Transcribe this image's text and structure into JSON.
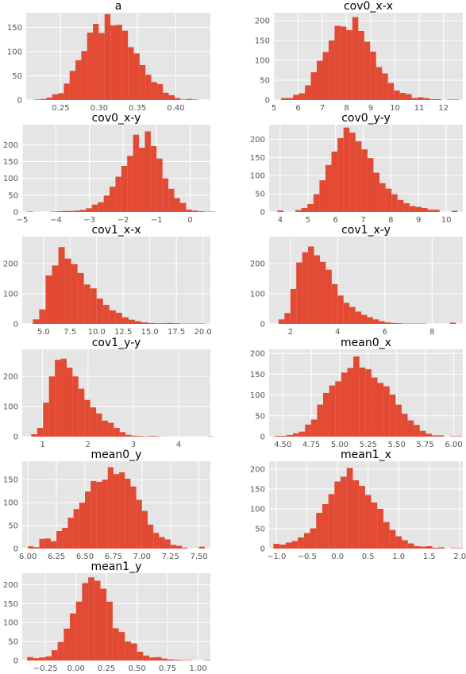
{
  "chart_data": [
    {
      "type": "bar",
      "title": "a",
      "xlabel": "",
      "ylabel": "",
      "xlim": [
        0.205,
        0.445
      ],
      "ylim": [
        0,
        180
      ],
      "xticks": [
        "0.25",
        "0.30",
        "0.35",
        "0.40"
      ],
      "yticks": [
        "0",
        "50",
        "100",
        "150"
      ],
      "bins": {
        "start": 0.216,
        "width": 0.0076,
        "values": [
          1,
          2,
          5,
          12,
          14,
          34,
          60,
          82,
          101,
          139,
          157,
          138,
          177,
          154,
          155,
          143,
          109,
          96,
          72,
          52,
          37,
          33,
          15,
          10,
          4,
          1,
          2,
          1
        ]
      }
    },
    {
      "type": "bar",
      "title": "cov0_x-x",
      "xlabel": "",
      "ylabel": "",
      "xlim": [
        5.0,
        12.8
      ],
      "ylim": [
        0,
        220
      ],
      "xticks": [
        "5",
        "6",
        "7",
        "8",
        "9",
        "10",
        "11",
        "12"
      ],
      "yticks": [
        "0",
        "50",
        "100",
        "150",
        "200"
      ],
      "bins": {
        "start": 5.3,
        "width": 0.245,
        "values": [
          5,
          5,
          13,
          17,
          37,
          70,
          99,
          121,
          150,
          187,
          185,
          176,
          209,
          174,
          147,
          122,
          83,
          67,
          43,
          24,
          18,
          15,
          5,
          7,
          5,
          2,
          2,
          0,
          1,
          1
        ]
      }
    },
    {
      "type": "bar",
      "title": "cov0_x-y",
      "xlabel": "",
      "ylabel": "",
      "xlim": [
        -5.0,
        0.6
      ],
      "ylim": [
        0,
        260
      ],
      "xticks": [
        "−5",
        "−4",
        "−3",
        "−2",
        "−1",
        "0"
      ],
      "yticks": [
        "0",
        "50",
        "100",
        "150",
        "200"
      ],
      "bins": {
        "start": -4.85,
        "width": 0.175,
        "values": [
          1,
          0,
          0,
          0,
          1,
          2,
          3,
          3,
          4,
          6,
          11,
          22,
          29,
          49,
          75,
          105,
          137,
          167,
          230,
          191,
          240,
          196,
          159,
          100,
          69,
          41,
          27,
          7,
          4,
          2,
          1,
          1
        ]
      }
    },
    {
      "type": "bar",
      "title": "cov0_y-y",
      "xlabel": "",
      "ylabel": "",
      "xlim": [
        3.6,
        10.6
      ],
      "ylim": [
        0,
        240
      ],
      "xticks": [
        "4",
        "5",
        "6",
        "7",
        "8",
        "9",
        "10"
      ],
      "yticks": [
        "0",
        "50",
        "100",
        "150",
        "200"
      ],
      "bins": {
        "start": 3.9,
        "width": 0.217,
        "values": [
          4,
          0,
          0,
          5,
          11,
          22,
          49,
          87,
          129,
          166,
          203,
          232,
          218,
          194,
          172,
          148,
          108,
          79,
          64,
          49,
          33,
          24,
          16,
          14,
          11,
          6,
          6,
          0,
          0,
          3
        ]
      }
    },
    {
      "type": "bar",
      "title": "cov1_x-x",
      "xlabel": "",
      "ylabel": "",
      "xlim": [
        3.0,
        20.7
      ],
      "ylim": [
        0,
        290
      ],
      "xticks": [
        "5.0",
        "7.5",
        "10.0",
        "12.5",
        "15.0",
        "17.5",
        "20.0"
      ],
      "yticks": [
        "0",
        "100",
        "200"
      ],
      "bins": {
        "start": 4.0,
        "width": 0.6,
        "values": [
          15,
          48,
          161,
          194,
          255,
          217,
          199,
          169,
          131,
          118,
          84,
          63,
          45,
          37,
          22,
          14,
          9,
          5,
          3,
          2,
          2,
          3,
          2,
          1,
          1,
          1,
          1,
          0
        ]
      }
    },
    {
      "type": "bar",
      "title": "cov1_x-y",
      "xlabel": "",
      "ylabel": "",
      "xlim": [
        1.1,
        9.3
      ],
      "ylim": [
        0,
        290
      ],
      "xticks": [
        "2",
        "4",
        "6",
        "8"
      ],
      "yticks": [
        "0",
        "100",
        "200"
      ],
      "bins": {
        "start": 1.5,
        "width": 0.25,
        "values": [
          15,
          36,
          116,
          204,
          238,
          257,
          228,
          206,
          180,
          132,
          94,
          70,
          56,
          41,
          30,
          22,
          15,
          9,
          5,
          3,
          2,
          1,
          1,
          1,
          1,
          0,
          0,
          0,
          0,
          4
        ]
      }
    },
    {
      "type": "bar",
      "title": "cov1_y-y",
      "xlabel": "",
      "ylabel": "",
      "xlim": [
        0.55,
        4.7
      ],
      "ylim": [
        0,
        290
      ],
      "xticks": [
        "1",
        "2",
        "3",
        "4"
      ],
      "yticks": [
        "0",
        "100",
        "200"
      ],
      "bins": {
        "start": 0.75,
        "width": 0.13,
        "values": [
          8,
          29,
          113,
          200,
          255,
          259,
          229,
          200,
          159,
          122,
          97,
          77,
          53,
          46,
          29,
          15,
          6,
          3,
          2,
          1,
          2,
          1,
          0,
          0,
          0,
          0,
          0,
          0,
          0,
          0,
          1
        ]
      }
    },
    {
      "type": "bar",
      "title": "mean0_x",
      "xlabel": "",
      "ylabel": "",
      "xlim": [
        4.38,
        6.08
      ],
      "ylim": [
        0,
        210
      ],
      "xticks": [
        "4.50",
        "4.75",
        "5.00",
        "5.25",
        "5.50",
        "5.75",
        "6.00"
      ],
      "yticks": [
        "0",
        "50",
        "100",
        "150",
        "200"
      ],
      "bins": {
        "start": 4.43,
        "width": 0.053,
        "values": [
          2,
          2,
          4,
          8,
          12,
          29,
          41,
          77,
          105,
          123,
          133,
          154,
          165,
          193,
          166,
          162,
          142,
          129,
          121,
          101,
          77,
          55,
          39,
          28,
          14,
          7,
          3,
          3,
          0,
          1,
          1
        ]
      }
    },
    {
      "type": "bar",
      "title": "mean0_y",
      "xlabel": "",
      "ylabel": "",
      "xlim": [
        5.95,
        7.6
      ],
      "ylim": [
        0,
        190
      ],
      "xticks": [
        "6.00",
        "6.25",
        "6.50",
        "6.75",
        "7.00",
        "7.25",
        "7.50"
      ],
      "yticks": [
        "0",
        "50",
        "100",
        "150"
      ],
      "bins": {
        "start": 6.0,
        "width": 0.05,
        "values": [
          5,
          3,
          21,
          22,
          16,
          38,
          45,
          67,
          86,
          100,
          124,
          147,
          145,
          150,
          177,
          162,
          166,
          152,
          135,
          106,
          82,
          52,
          34,
          25,
          20,
          8,
          6,
          2,
          0,
          0,
          4
        ]
      }
    },
    {
      "type": "bar",
      "title": "mean1_x",
      "xlabel": "",
      "ylabel": "",
      "xlim": [
        -1.12,
        2.05
      ],
      "ylim": [
        0,
        220
      ],
      "xticks": [
        "−1.0",
        "−0.5",
        "0.0",
        "0.5",
        "1.0",
        "1.5",
        "2.0"
      ],
      "yticks": [
        "0",
        "50",
        "100",
        "150",
        "200"
      ],
      "bins": {
        "start": -1.05,
        "width": 0.1,
        "values": [
          12,
          10,
          15,
          19,
          28,
          39,
          51,
          90,
          112,
          137,
          169,
          181,
          203,
          172,
          158,
          135,
          116,
          100,
          67,
          47,
          31,
          21,
          13,
          6,
          5,
          6,
          2,
          3,
          0,
          1,
          1
        ]
      }
    },
    {
      "type": "bar",
      "title": "mean1_y",
      "xlabel": "",
      "ylabel": "",
      "xlim": [
        -0.44,
        1.1
      ],
      "ylim": [
        0,
        230
      ],
      "xticks": [
        "−0.25",
        "0.00",
        "0.25",
        "0.50",
        "0.75",
        "1.00"
      ],
      "yticks": [
        "0",
        "50",
        "100",
        "150",
        "200"
      ],
      "bins": {
        "start": -0.4,
        "width": 0.05,
        "values": [
          9,
          6,
          8,
          11,
          27,
          49,
          84,
          124,
          155,
          204,
          219,
          210,
          189,
          155,
          85,
          75,
          50,
          45,
          23,
          13,
          8,
          9,
          5,
          3,
          2,
          1,
          1,
          0,
          0,
          1
        ]
      }
    }
  ]
}
